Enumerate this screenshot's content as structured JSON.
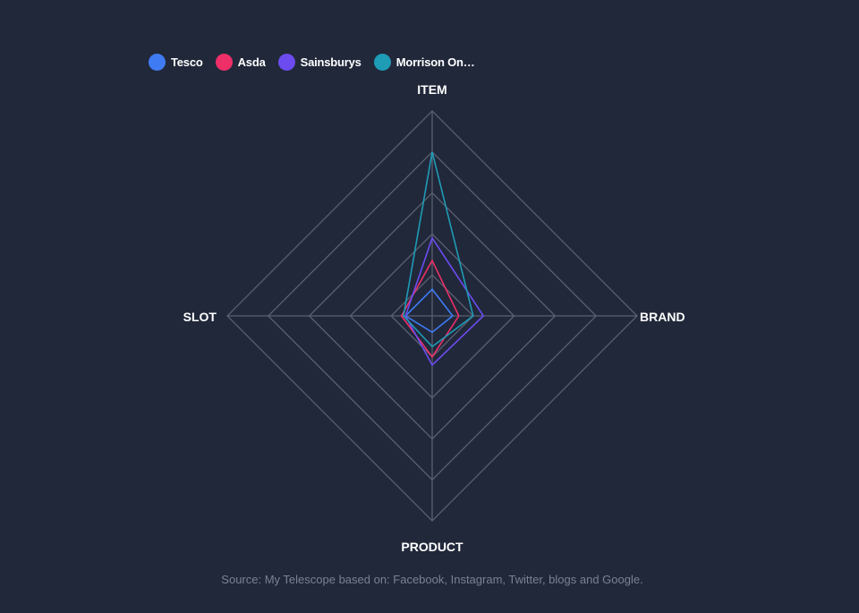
{
  "colors": {
    "background": "#21283a",
    "grid": "#5a6072",
    "axis_label": "#ffffff",
    "source_text": "#7b8192"
  },
  "legend": {
    "items": [
      {
        "label": "Tesco",
        "color": "#3f7cf4"
      },
      {
        "label": "Asda",
        "color": "#ee2f68"
      },
      {
        "label": "Sainsburys",
        "color": "#6c4cf0"
      },
      {
        "label": "Morrison On…",
        "color": "#1e9bb5"
      }
    ]
  },
  "source": "Source: My Telescope based on: Facebook, Instagram, Twitter, blogs and Google.",
  "chart_data": {
    "type": "radar",
    "axes": [
      "ITEM",
      "BRAND",
      "PRODUCT",
      "SLOT"
    ],
    "rlim": [
      0,
      100
    ],
    "grid_levels": [
      20,
      40,
      60,
      80,
      100
    ],
    "grid": true,
    "legend_position": "top-left",
    "series": [
      {
        "name": "Tesco",
        "values": [
          13,
          10,
          8,
          13
        ]
      },
      {
        "name": "Asda",
        "values": [
          27,
          13,
          20,
          15
        ]
      },
      {
        "name": "Sainsburys",
        "values": [
          38,
          25,
          24,
          13
        ]
      },
      {
        "name": "Morrison On…",
        "values": [
          80,
          20,
          15,
          14
        ]
      }
    ]
  }
}
